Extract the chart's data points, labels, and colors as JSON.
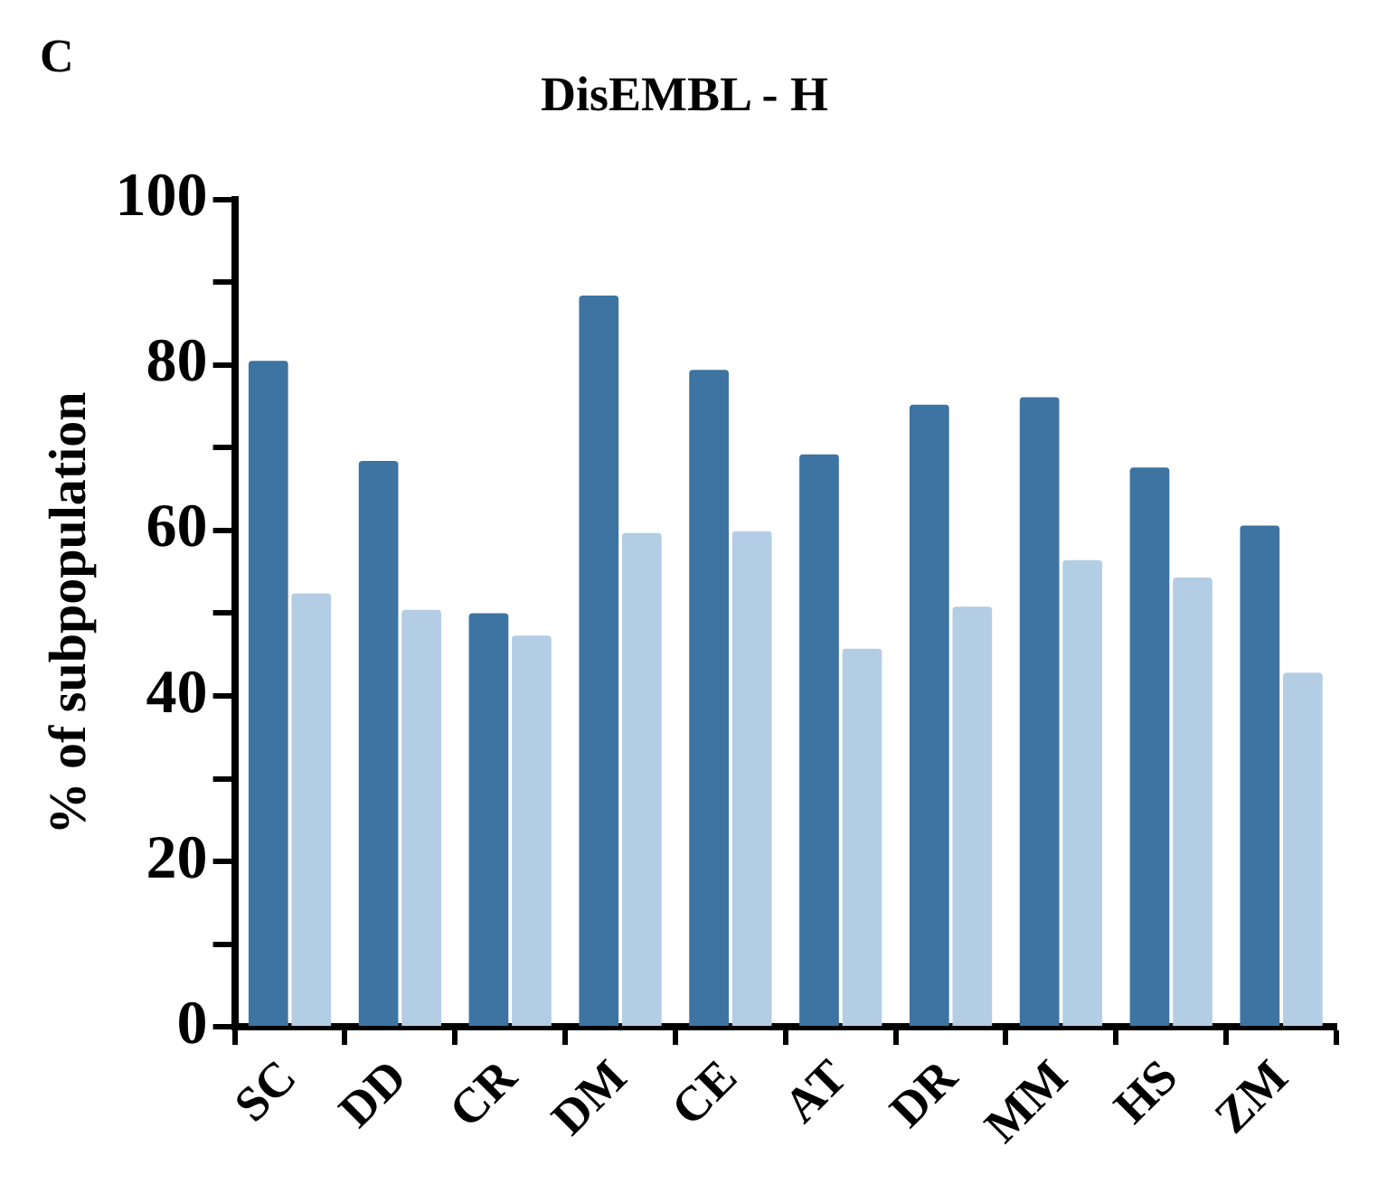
{
  "chart_data": {
    "type": "bar",
    "title": "DisEMBL - H",
    "ylabel": "% of subpopulation",
    "annotations": [
      "C"
    ],
    "categories": [
      "SC",
      "DD",
      "CR",
      "DM",
      "CE",
      "AT",
      "DR",
      "MM",
      "HS",
      "ZM"
    ],
    "series": [
      {
        "color": "#3d74a1",
        "values": [
          80.5,
          68.4,
          50.0,
          88.4,
          79.4,
          69.2,
          75.2,
          76.1,
          67.6,
          60.6
        ]
      },
      {
        "color": "#b3cde4",
        "values": [
          52.4,
          50.4,
          47.3,
          59.7,
          59.9,
          45.7,
          50.8,
          56.4,
          54.3,
          42.8
        ]
      }
    ],
    "ylim": [
      0,
      100
    ],
    "yticks": [
      0,
      {
        "value": 10,
        "label": null
      },
      20,
      {
        "value": 30,
        "label": null
      },
      40,
      {
        "value": 50,
        "label": null
      },
      60,
      {
        "value": 70,
        "label": null
      },
      80,
      {
        "value": 90,
        "label": null
      },
      100
    ],
    "grid": false,
    "legend": false
  }
}
